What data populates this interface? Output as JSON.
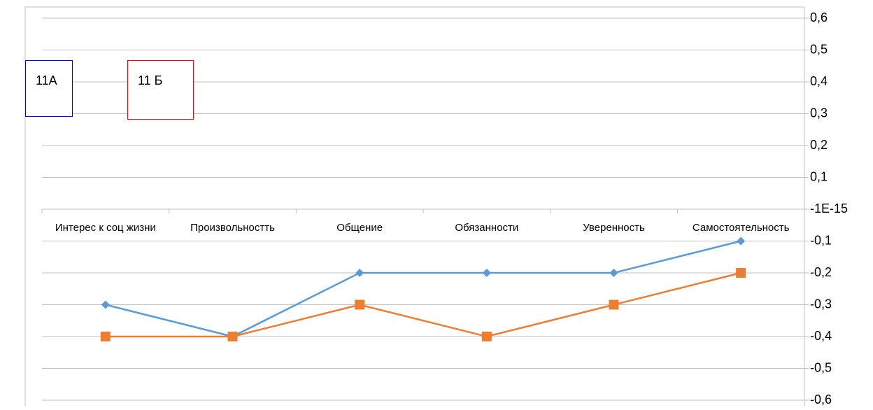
{
  "chart_data": {
    "type": "line",
    "categories": [
      "Интерес к соц жизни",
      "Произвольностть",
      "Общение",
      "Обязанности",
      "Уверенность",
      "Самостоятельность"
    ],
    "series": [
      {
        "color": "#5b9bd5",
        "marker": "diamond",
        "values": [
          -0.3,
          -0.4,
          -0.2,
          -0.2,
          -0.2,
          -0.1
        ]
      },
      {
        "color": "#ed7d31",
        "marker": "square",
        "values": [
          -0.4,
          -0.4,
          -0.3,
          -0.4,
          -0.3,
          -0.2
        ]
      }
    ],
    "ylim": [
      -0.6,
      0.6
    ],
    "yticks": [
      {
        "value": 0.6,
        "label": "0,6"
      },
      {
        "value": 0.5,
        "label": "0,5"
      },
      {
        "value": 0.4,
        "label": "0,4"
      },
      {
        "value": 0.3,
        "label": "0,3"
      },
      {
        "value": 0.2,
        "label": "0,2"
      },
      {
        "value": 0.1,
        "label": "0,1"
      },
      {
        "value": -1e-15,
        "label": "-1E-15"
      },
      {
        "value": -0.1,
        "label": "-0,1"
      },
      {
        "value": -0.2,
        "label": "-0,2"
      },
      {
        "value": -0.3,
        "label": "-0,3"
      },
      {
        "value": -0.4,
        "label": "-0,4"
      },
      {
        "value": -0.5,
        "label": "-0,5"
      },
      {
        "value": -0.6,
        "label": "-0,6"
      }
    ],
    "y_axis_side": "right",
    "grid": true,
    "annotations": [
      {
        "text": "11А",
        "border_color": "#0000ff"
      },
      {
        "text": "11 Б",
        "border_color": "#ff0000"
      }
    ]
  }
}
